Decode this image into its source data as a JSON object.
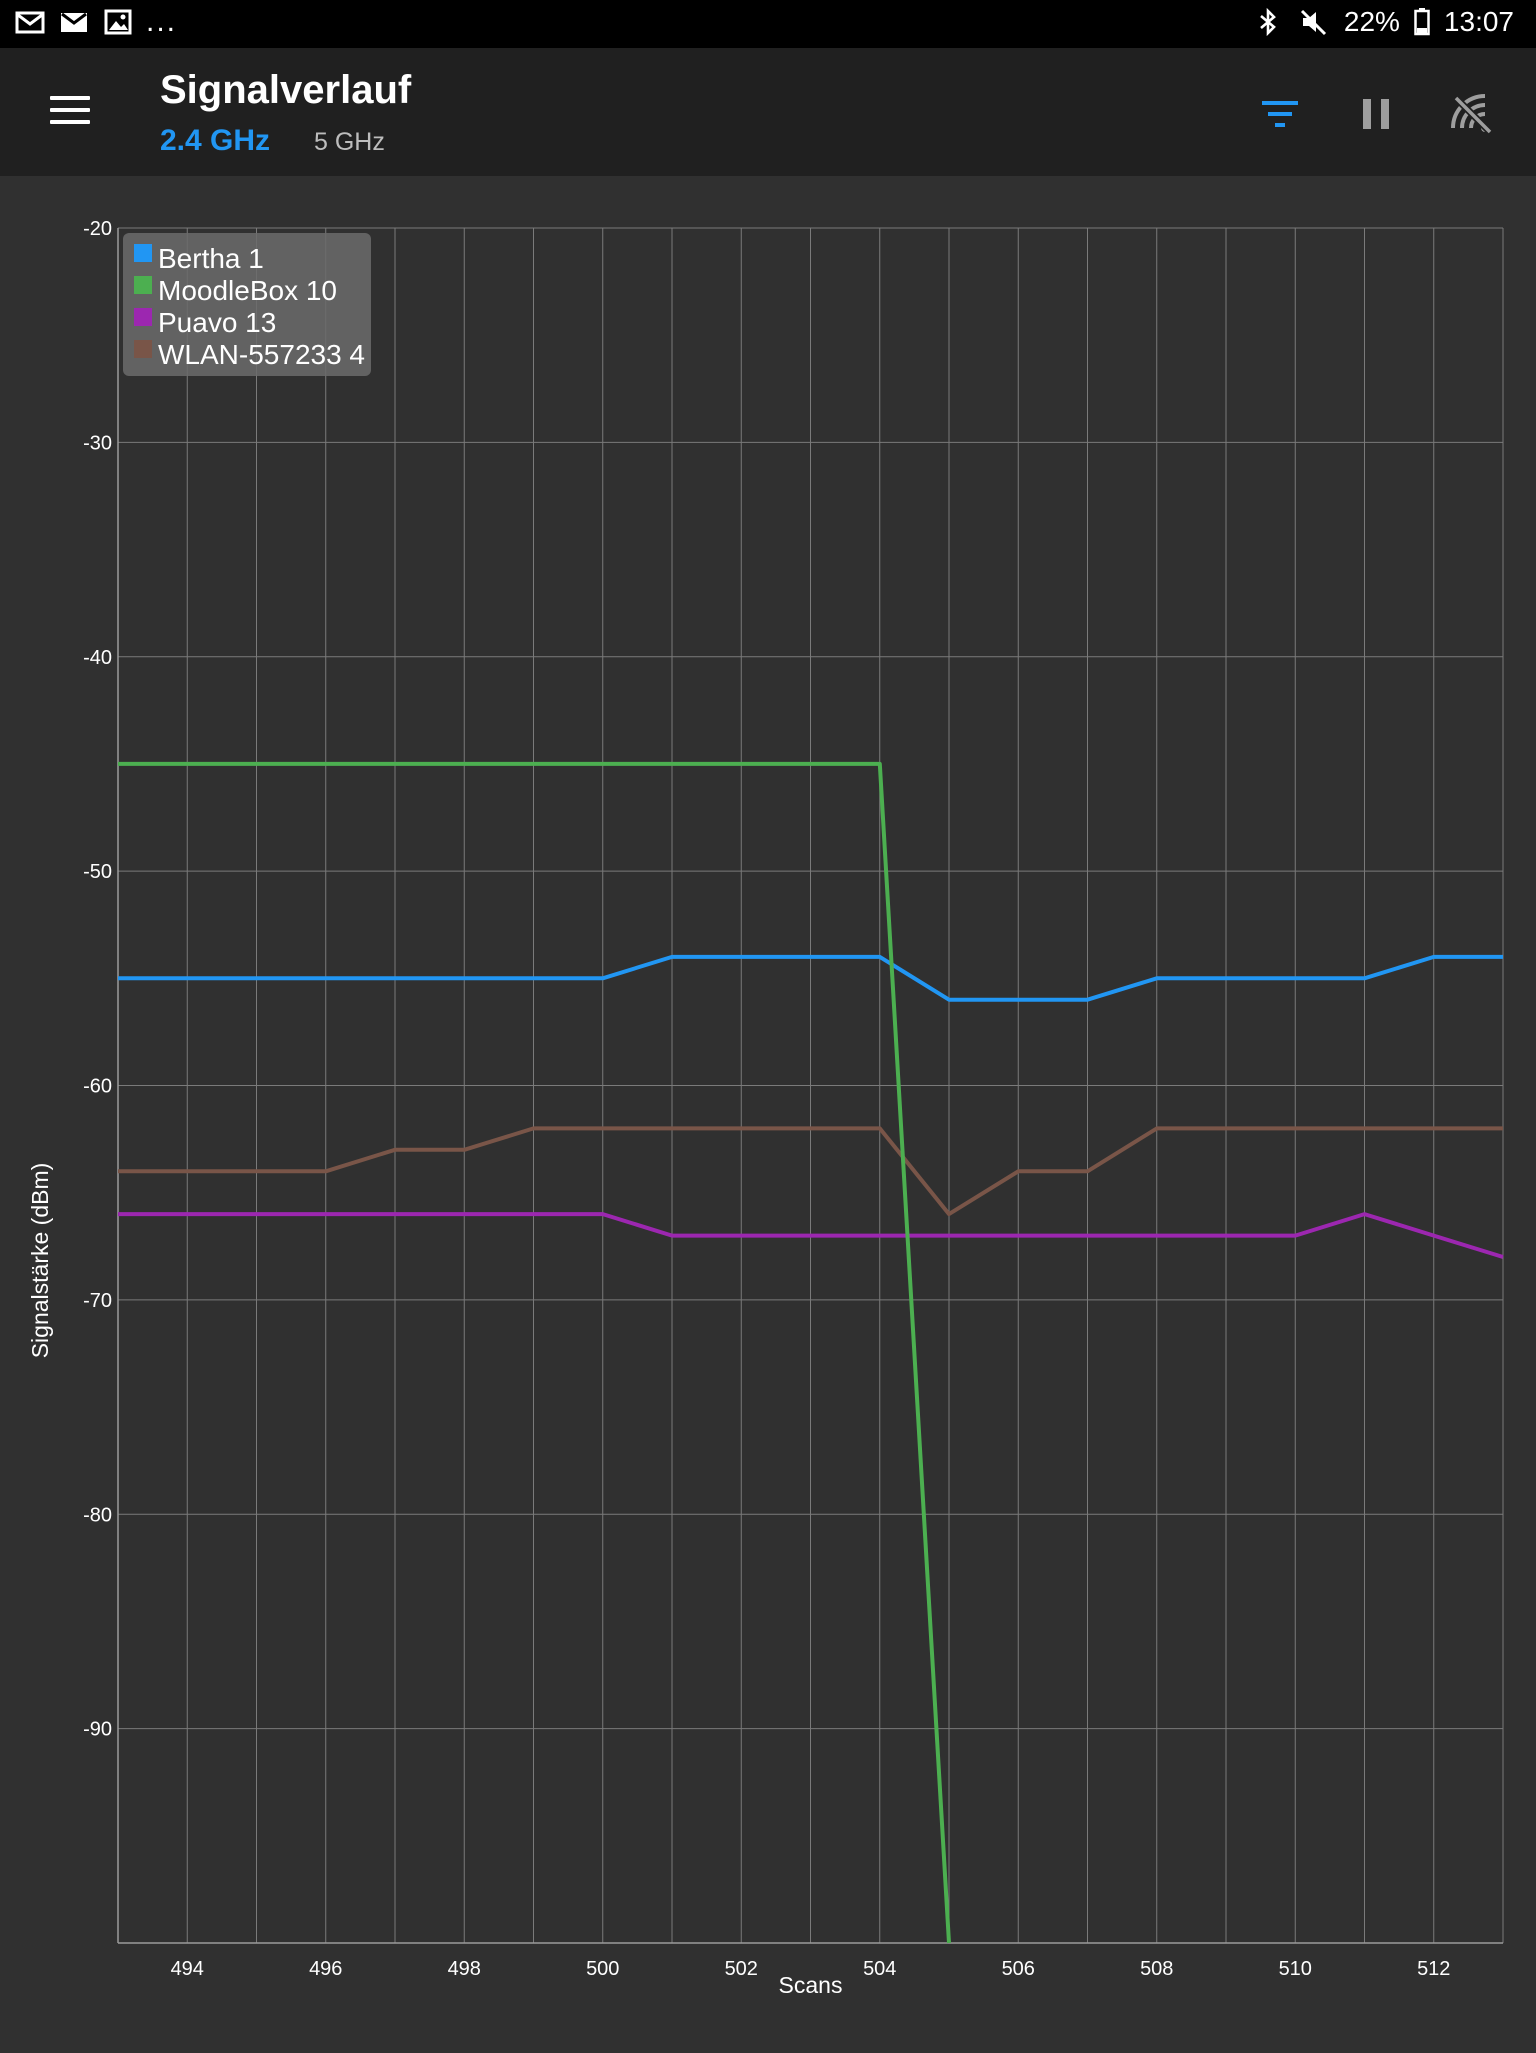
{
  "status_bar": {
    "left_icons": [
      "email-icon",
      "mail-icon",
      "image-icon"
    ],
    "more": "...",
    "right_icons": [
      "bluetooth-icon",
      "mute-icon",
      "battery-icon"
    ],
    "battery": "22%",
    "time": "13:07"
  },
  "app_bar": {
    "title": "Signalverlauf",
    "tabs": [
      {
        "label": "2.4 GHz",
        "selected": true
      },
      {
        "label": "5 GHz",
        "selected": false
      }
    ],
    "actions": [
      "filter-icon",
      "pause-icon",
      "wifi-scan-off-icon"
    ],
    "accent_color": "#2196f3"
  },
  "chart_data": {
    "type": "line",
    "title": "",
    "xlabel": "Scans",
    "ylabel": "Signalstärke (dBm)",
    "xlim": [
      493,
      513
    ],
    "ylim": [
      -100,
      -20
    ],
    "x_ticks": [
      "494",
      "496",
      "498",
      "500",
      "502",
      "504",
      "506",
      "508",
      "510",
      "512"
    ],
    "y_ticks": [
      "-20",
      "-30",
      "-40",
      "-50",
      "-60",
      "-70",
      "-80",
      "-90"
    ],
    "grid": true,
    "legend_position": "top-left",
    "series": [
      {
        "name": "Bertha 1",
        "color": "#2196f3",
        "x": [
          493,
          494,
          495,
          496,
          497,
          498,
          499,
          500,
          501,
          502,
          503,
          504,
          505,
          506,
          507,
          508,
          509,
          510,
          511,
          512,
          513
        ],
        "values": [
          -55,
          -55,
          -55,
          -55,
          -55,
          -55,
          -55,
          -55,
          -54,
          -54,
          -54,
          -54,
          -56,
          -56,
          -56,
          -55,
          -55,
          -55,
          -55,
          -54,
          -54
        ]
      },
      {
        "name": "MoodleBox 10",
        "color": "#4caf50",
        "x": [
          493,
          494,
          495,
          496,
          497,
          498,
          499,
          500,
          501,
          502,
          503,
          504,
          505
        ],
        "values": [
          -45,
          -45,
          -45,
          -45,
          -45,
          -45,
          -45,
          -45,
          -45,
          -45,
          -45,
          -45,
          -100
        ]
      },
      {
        "name": "Puavo 13",
        "color": "#9c27b0",
        "x": [
          493,
          494,
          495,
          496,
          497,
          498,
          499,
          500,
          501,
          502,
          503,
          504,
          505,
          506,
          507,
          508,
          509,
          510,
          511,
          512,
          513
        ],
        "values": [
          -66,
          -66,
          -66,
          -66,
          -66,
          -66,
          -66,
          -66,
          -67,
          -67,
          -67,
          -67,
          -67,
          -67,
          -67,
          -67,
          -67,
          -67,
          -66,
          -67,
          -68
        ]
      },
      {
        "name": "WLAN-557233 4",
        "color": "#795548",
        "x": [
          493,
          494,
          495,
          496,
          497,
          498,
          499,
          500,
          501,
          502,
          503,
          504,
          505,
          506,
          507,
          508,
          509,
          510,
          511,
          512,
          513
        ],
        "values": [
          -64,
          -64,
          -64,
          -64,
          -63,
          -63,
          -62,
          -62,
          -62,
          -62,
          -62,
          -62,
          -66,
          -64,
          -64,
          -62,
          -62,
          -62,
          -62,
          -62,
          -62
        ]
      }
    ]
  }
}
